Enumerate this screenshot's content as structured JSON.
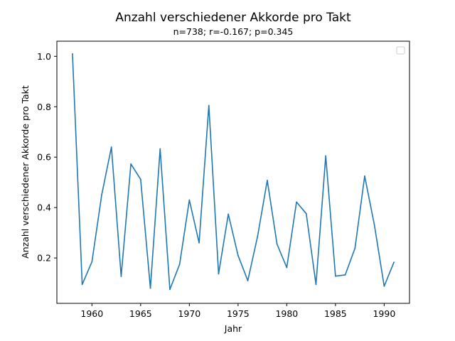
{
  "chart_data": {
    "type": "line",
    "title": "Anzahl verschiedener Akkorde pro Takt",
    "subtitle": "n=738; r=-0.167; p=0.345",
    "xlabel": "Jahr",
    "ylabel": "Anzahl verschiedener Akkorde pro Takt",
    "xlim": [
      1956.4,
      1992.6
    ],
    "ylim": [
      0.02,
      1.06
    ],
    "x_ticks": [
      1960,
      1965,
      1970,
      1975,
      1980,
      1985,
      1990
    ],
    "y_ticks": [
      0.2,
      0.4,
      0.6,
      0.8,
      1.0
    ],
    "y_tick_labels": [
      "0.2",
      "0.4",
      "0.6",
      "0.8",
      "1.0"
    ],
    "grid": false,
    "legend": "top-right (empty)",
    "series": [
      {
        "color": "#1f77b4",
        "x": [
          1958,
          1959,
          1960,
          1961,
          1962,
          1963,
          1964,
          1965,
          1966,
          1967,
          1968,
          1969,
          1970,
          1971,
          1972,
          1973,
          1974,
          1975,
          1976,
          1977,
          1978,
          1979,
          1980,
          1981,
          1982,
          1983,
          1984,
          1985,
          1986,
          1987,
          1988,
          1989,
          1990,
          1991
        ],
        "y": [
          1.01,
          0.095,
          0.185,
          0.45,
          0.64,
          0.127,
          0.573,
          0.512,
          0.08,
          0.633,
          0.075,
          0.175,
          0.43,
          0.26,
          0.805,
          0.137,
          0.374,
          0.21,
          0.11,
          0.285,
          0.508,
          0.255,
          0.162,
          0.422,
          0.376,
          0.095,
          0.605,
          0.128,
          0.133,
          0.238,
          0.525,
          0.33,
          0.088,
          0.183
        ]
      }
    ]
  }
}
